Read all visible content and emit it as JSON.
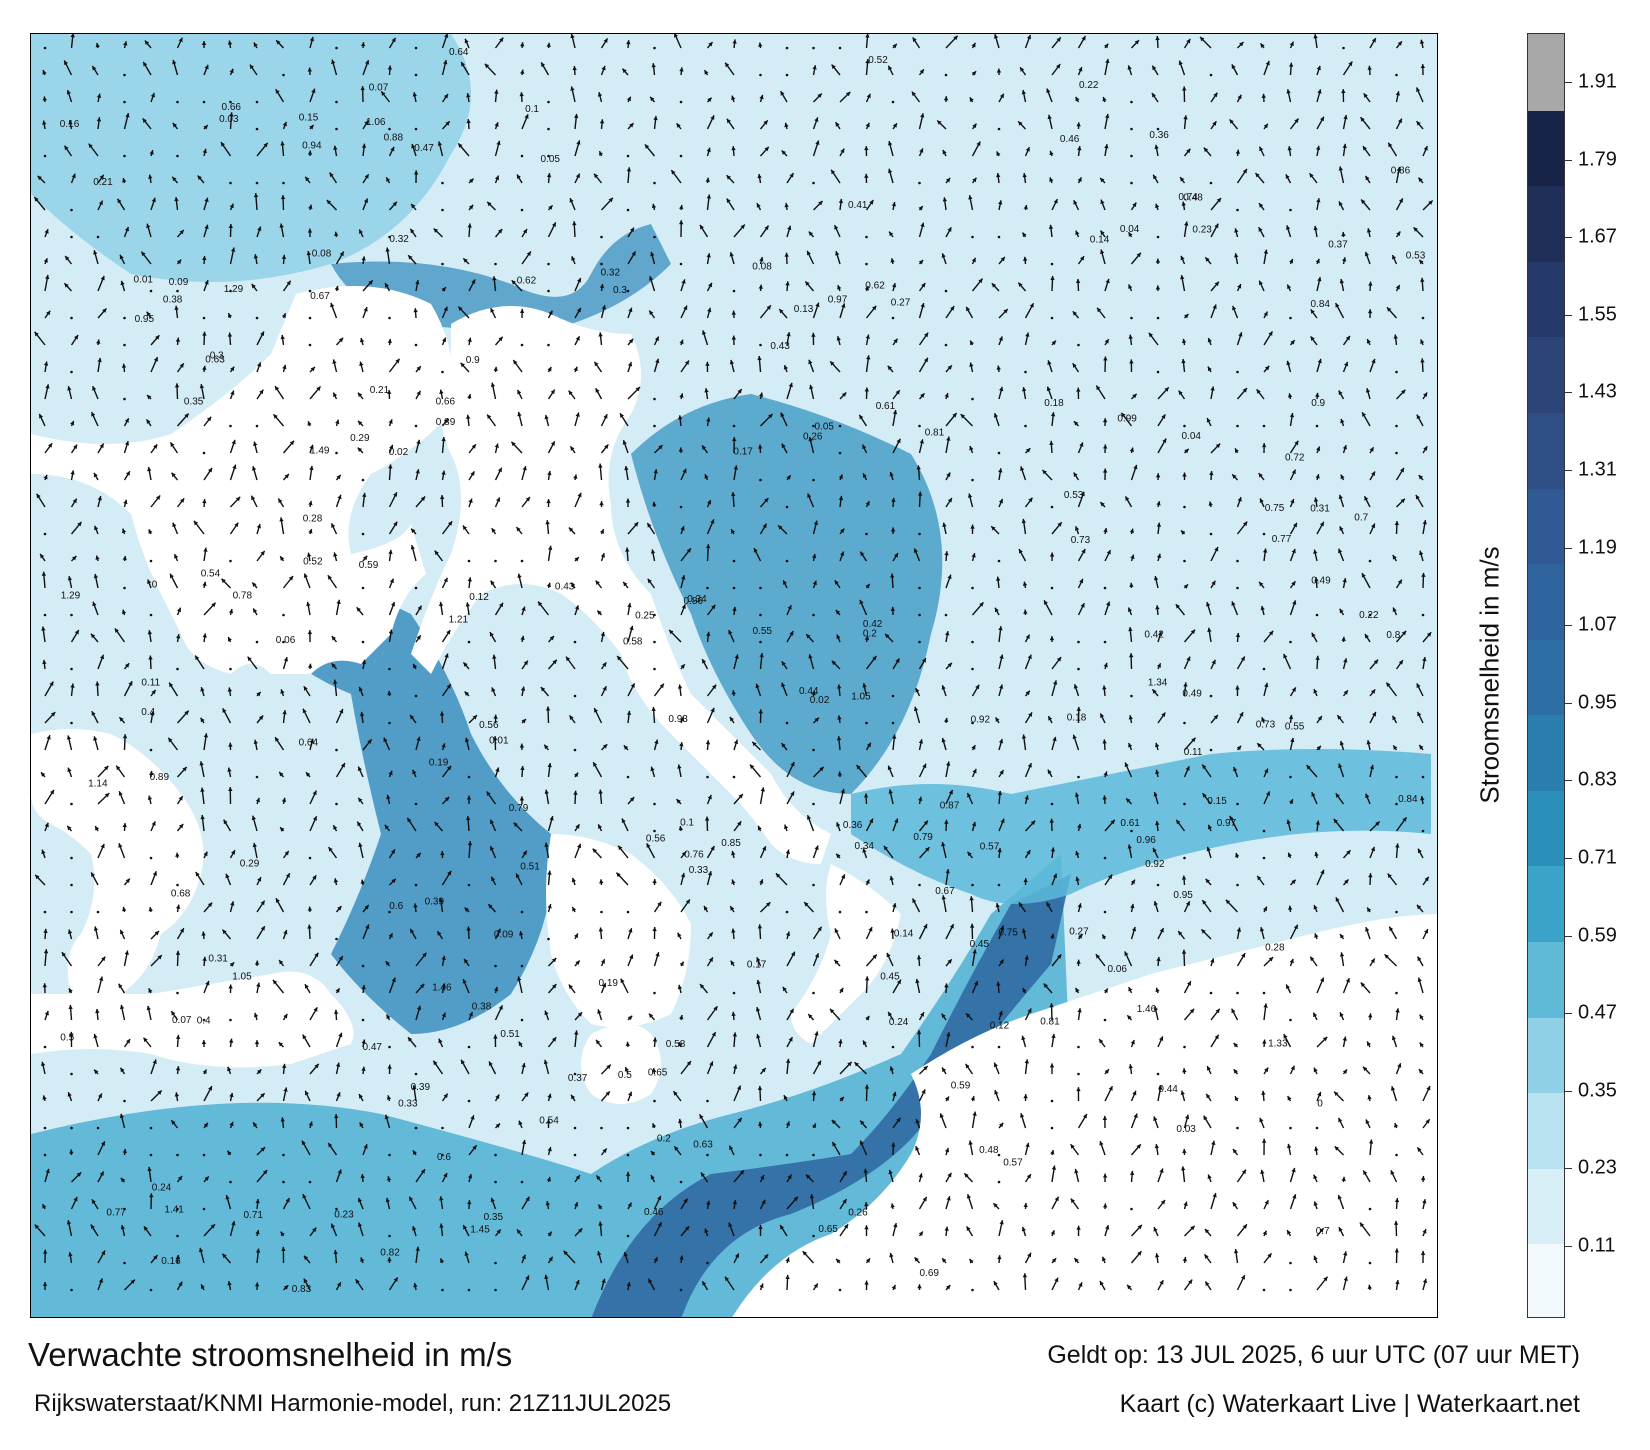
{
  "title": "Verwachte stroomsnelheid in m/s",
  "subtitle": "Rijkswaterstaat/KNMI Harmonie-model, run: 21Z11JUL2025",
  "valid_time": "Geldt op: 13 JUL 2025, 6 uur UTC (07 uur MET)",
  "credit": "Kaart (c) Waterkaart Live | Waterkaart.net",
  "colorbar": {
    "label": "Stroomsnelheid in m/s",
    "ticks": [
      "1.91",
      "1.79",
      "1.67",
      "1.55",
      "1.43",
      "1.31",
      "1.19",
      "1.07",
      "0.95",
      "0.83",
      "0.71",
      "0.59",
      "0.47",
      "0.35",
      "0.23",
      "0.11"
    ],
    "colors": [
      "#f2fafd",
      "#d8eff7",
      "#b9e2f0",
      "#8fd0e6",
      "#5fbad7",
      "#3aa3c7",
      "#2b8fb9",
      "#2a7eae",
      "#2d6ea5",
      "#2f639d",
      "#315a95",
      "#2f4e86",
      "#2c4478",
      "#263a6a",
      "#1f2f58",
      "#182447",
      "#a8a8a8"
    ]
  },
  "colors": {
    "land": "#ffffff",
    "sea_light": "#d4ecf5",
    "sea_mid": "#4fb0d2",
    "sea_deep": "#2f6aa3",
    "arrow": "#111111"
  },
  "map_labels": [
    {
      "text": "0.13"
    },
    {
      "text": "0.19"
    },
    {
      "text": "0.12"
    },
    {
      "text": "0.29"
    },
    {
      "text": "0.17"
    },
    {
      "text": "0.15"
    },
    {
      "text": "0.14"
    },
    {
      "text": "0.18"
    },
    {
      "text": "0.2"
    },
    {
      "text": "0.16"
    },
    {
      "text": "0.23"
    },
    {
      "text": "0.22"
    },
    {
      "text": "0.28"
    },
    {
      "text": "0.31"
    },
    {
      "text": "0.09"
    },
    {
      "text": "0.08"
    },
    {
      "text": "0.07"
    },
    {
      "text": "0.24"
    },
    {
      "text": "0.1"
    },
    {
      "text": "0.11"
    },
    {
      "text": "0.37"
    },
    {
      "text": "0.35"
    },
    {
      "text": "0.27"
    },
    {
      "text": "0.33"
    },
    {
      "text": "0.4"
    },
    {
      "text": "0.38"
    },
    {
      "text": "0.42"
    },
    {
      "text": "0.45"
    },
    {
      "text": "0.56"
    },
    {
      "text": "0.52"
    },
    {
      "text": "0.51"
    },
    {
      "text": "0.49"
    },
    {
      "text": "0.53"
    },
    {
      "text": "0.54"
    },
    {
      "text": "0.44"
    },
    {
      "text": "0.39"
    },
    {
      "text": "0.36"
    },
    {
      "text": "0.34"
    },
    {
      "text": "0.32"
    },
    {
      "text": "0.3"
    },
    {
      "text": "0.26"
    },
    {
      "text": "0.25"
    },
    {
      "text": "0.21"
    },
    {
      "text": "0.06"
    },
    {
      "text": "0.05"
    },
    {
      "text": "0.04"
    },
    {
      "text": "0.03"
    },
    {
      "text": "0.02"
    },
    {
      "text": "0.01"
    },
    {
      "text": "0"
    },
    {
      "text": "0.7"
    },
    {
      "text": "0.89"
    },
    {
      "text": "0.99"
    },
    {
      "text": "0.8"
    },
    {
      "text": "0.64"
    },
    {
      "text": "0.79"
    },
    {
      "text": "0.6"
    },
    {
      "text": "0.59"
    },
    {
      "text": "0.73"
    },
    {
      "text": "0.81"
    },
    {
      "text": "0.93"
    },
    {
      "text": "0.86"
    },
    {
      "text": "0.77"
    },
    {
      "text": "0.58"
    },
    {
      "text": "0.62"
    },
    {
      "text": "0.95"
    },
    {
      "text": "1.05"
    },
    {
      "text": "0.97"
    },
    {
      "text": "1.06"
    },
    {
      "text": "0.47"
    },
    {
      "text": "0.46"
    },
    {
      "text": "0.57"
    },
    {
      "text": "0.55"
    },
    {
      "text": "0.48"
    },
    {
      "text": "0.43"
    },
    {
      "text": "0.5"
    },
    {
      "text": "0.61"
    },
    {
      "text": "0.63"
    },
    {
      "text": "0.66"
    },
    {
      "text": "0.67"
    },
    {
      "text": "0.69"
    },
    {
      "text": "0.71"
    },
    {
      "text": "0.75"
    },
    {
      "text": "0.78"
    },
    {
      "text": "0.82"
    },
    {
      "text": "0.83"
    },
    {
      "text": "0.84"
    },
    {
      "text": "0.85"
    },
    {
      "text": "0.87"
    },
    {
      "text": "0.88"
    },
    {
      "text": "0.9"
    },
    {
      "text": "0.92"
    },
    {
      "text": "0.94"
    },
    {
      "text": "0.96"
    },
    {
      "text": "0.68"
    },
    {
      "text": "0.74"
    },
    {
      "text": "0.76"
    },
    {
      "text": "1.14"
    },
    {
      "text": "1.33"
    },
    {
      "text": "1.41"
    },
    {
      "text": "1.45"
    },
    {
      "text": "1.46"
    },
    {
      "text": "1.29"
    },
    {
      "text": "1.49"
    },
    {
      "text": "1.34"
    },
    {
      "text": "1.21"
    },
    {
      "text": "0.72"
    },
    {
      "text": "0.65"
    },
    {
      "text": "0.41"
    },
    {
      "text": "0.6"
    },
    {
      "text": "0.44"
    },
    {
      "text": "0.5"
    },
    {
      "text": "0.31"
    },
    {
      "text": "0.26"
    },
    {
      "text": "0.34"
    },
    {
      "text": "0.35"
    },
    {
      "text": "0.2"
    },
    {
      "text": "0.12"
    },
    {
      "text": "0.15"
    },
    {
      "text": "0.14"
    },
    {
      "text": "0.16"
    },
    {
      "text": "0.17"
    },
    {
      "text": "0.18"
    },
    {
      "text": "0.19"
    },
    {
      "text": "0.21"
    },
    {
      "text": "0.22"
    },
    {
      "text": "0.23"
    },
    {
      "text": "0.24"
    },
    {
      "text": "0.27"
    },
    {
      "text": "0.28"
    },
    {
      "text": "0.29"
    },
    {
      "text": "0.3"
    },
    {
      "text": "0.32"
    },
    {
      "text": "0.33"
    },
    {
      "text": "0.36"
    },
    {
      "text": "0.37"
    },
    {
      "text": "0.38"
    },
    {
      "text": "0.39"
    },
    {
      "text": "0.4"
    },
    {
      "text": "0.42"
    },
    {
      "text": "0.43"
    },
    {
      "text": "0.45"
    },
    {
      "text": "0.46"
    },
    {
      "text": "0.47"
    },
    {
      "text": "0.48"
    },
    {
      "text": "0.49"
    },
    {
      "text": "0.51"
    },
    {
      "text": "0.52"
    },
    {
      "text": "0.53"
    },
    {
      "text": "0.54"
    },
    {
      "text": "0.55"
    },
    {
      "text": "0.56"
    },
    {
      "text": "0.57"
    },
    {
      "text": "0.58"
    },
    {
      "text": "0.59"
    },
    {
      "text": "0.61"
    },
    {
      "text": "0.62"
    },
    {
      "text": "0.63"
    },
    {
      "text": "0.64"
    },
    {
      "text": "0.65"
    },
    {
      "text": "0.66"
    },
    {
      "text": "0.67"
    },
    {
      "text": "0.7"
    },
    {
      "text": "0.73"
    },
    {
      "text": "0.75"
    },
    {
      "text": "0.77"
    },
    {
      "text": "0.79"
    },
    {
      "text": "0.81"
    },
    {
      "text": "0.84"
    },
    {
      "text": "0.86"
    },
    {
      "text": "0.89"
    },
    {
      "text": "0.9"
    },
    {
      "text": "0.92"
    },
    {
      "text": "0.95"
    },
    {
      "text": "0.97"
    },
    {
      "text": "1.05"
    },
    {
      "text": "1.29"
    },
    {
      "text": "1.46"
    },
    {
      "text": "0.11"
    },
    {
      "text": "0.1"
    },
    {
      "text": "0.09"
    },
    {
      "text": "0.08"
    },
    {
      "text": "0.07"
    },
    {
      "text": "0.06"
    },
    {
      "text": "0.05"
    },
    {
      "text": "0.04"
    },
    {
      "text": "0.03"
    },
    {
      "text": "0.02"
    },
    {
      "text": "0.01"
    },
    {
      "text": "0"
    }
  ]
}
